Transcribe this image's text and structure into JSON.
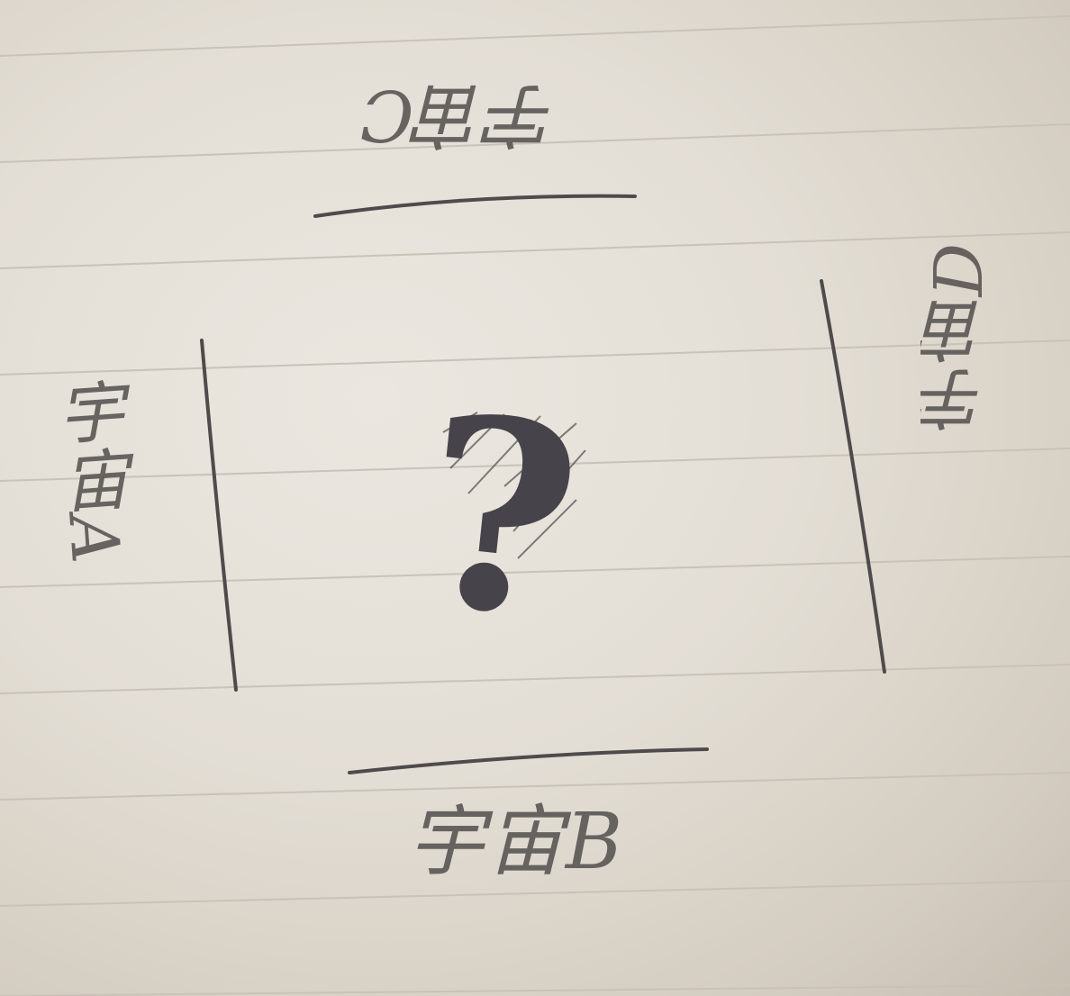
{
  "labels": {
    "top": "宇宙C",
    "bottom": "宇宙B",
    "left": "宇宙A",
    "right": "宇宙D"
  },
  "center": {
    "symbol": "?"
  },
  "colors": {
    "paper": "#e3ded5",
    "rule_line": "#c9c2b8",
    "pencil": "#4f4b4c"
  }
}
